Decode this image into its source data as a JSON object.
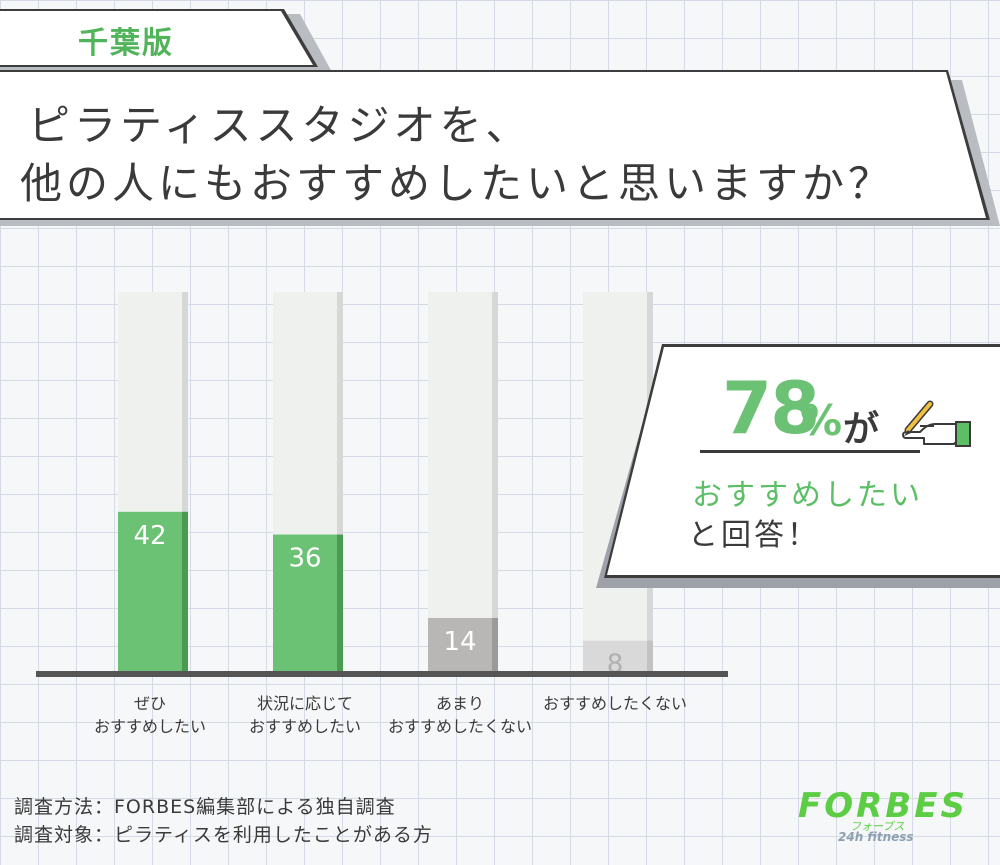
{
  "tag": {
    "label": "千葉版"
  },
  "title": {
    "line1": "ピラティススタジオを、",
    "line2": "他の人にもおすすめしたいと思いますか？"
  },
  "chart_data": {
    "type": "bar",
    "categories": [
      [
        "ぜひ",
        "おすすめしたい"
      ],
      [
        "状況に応じて",
        "おすすめしたい"
      ],
      [
        "あまり",
        "おすすめしたくない"
      ],
      [
        "おすすめしたくない"
      ]
    ],
    "values": [
      42,
      36,
      14,
      8
    ],
    "ylim": [
      0,
      100
    ],
    "bar_colors": [
      "#6cc274",
      "#6cc274",
      "#b9b7b5",
      "#d9d9d9"
    ],
    "label_colors": [
      "#ffffff",
      "#ffffff",
      "#ffffff",
      "#b0b0b0"
    ]
  },
  "callout": {
    "percent": "78",
    "unit": "%",
    "particle": "が",
    "line2": "おすすめしたい",
    "line3": "と回答！",
    "accent_color": "#6cc274",
    "icon": "writing-hand-icon"
  },
  "footnotes": {
    "method": "調査方法：FORBES編集部による独自調査",
    "target": "調査対象：ピラティスを利用したことがある方"
  },
  "logo": {
    "name": "FORBES",
    "katakana": "フォーブス",
    "tagline": "24h fitness"
  }
}
